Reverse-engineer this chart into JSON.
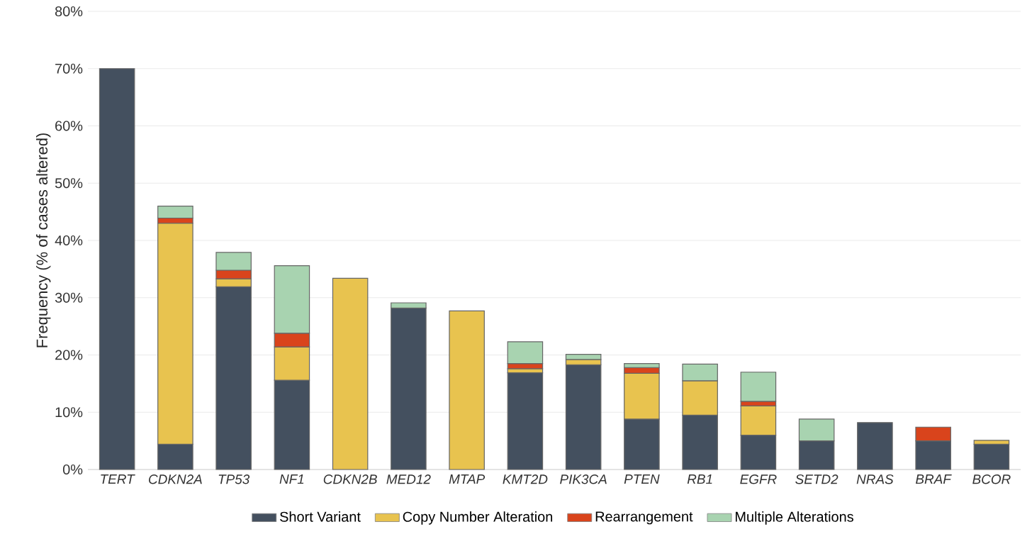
{
  "chart_data": {
    "type": "bar",
    "stacked": true,
    "ylabel": "Frequency (% of cases altered)",
    "categories": [
      "TERT",
      "CDKN2A",
      "TP53",
      "NF1",
      "CDKN2B",
      "MED12",
      "MTAP",
      "KMT2D",
      "PIK3CA",
      "PTEN",
      "RB1",
      "EGFR",
      "SETD2",
      "NRAS",
      "BRAF",
      "BCOR"
    ],
    "series": [
      {
        "name": "Short Variant",
        "color": "#44505f",
        "values": [
          70,
          4.4,
          31.9,
          15.6,
          null,
          28.2,
          null,
          16.9,
          18.3,
          8.8,
          9.5,
          6.0,
          5.0,
          8.2,
          5.0,
          4.4
        ]
      },
      {
        "name": "Copy Number Alteration",
        "color": "#e8c34f",
        "values": [
          null,
          38.6,
          1.4,
          5.8,
          33.4,
          null,
          27.7,
          0.7,
          0.9,
          8.0,
          6.0,
          5.1,
          null,
          null,
          null,
          0.7
        ]
      },
      {
        "name": "Rearrangement",
        "color": "#d9441c",
        "values": [
          null,
          0.9,
          1.5,
          2.4,
          null,
          null,
          null,
          0.9,
          null,
          1.0,
          null,
          0.8,
          null,
          null,
          2.4,
          null
        ]
      },
      {
        "name": "Multiple Alterations",
        "color": "#a8d3b0",
        "values": [
          null,
          2.1,
          3.1,
          11.8,
          null,
          0.9,
          null,
          3.8,
          0.9,
          0.7,
          2.9,
          5.1,
          3.8,
          null,
          null,
          null
        ]
      }
    ],
    "ylim": [
      0,
      80
    ],
    "yticks": [
      {
        "value": 0,
        "label": "0%"
      },
      {
        "value": 10,
        "label": "10%"
      },
      {
        "value": 20,
        "label": "20%"
      },
      {
        "value": 30,
        "label": "30%"
      },
      {
        "value": 40,
        "label": "40%"
      },
      {
        "value": 50,
        "label": "50%"
      },
      {
        "value": 60,
        "label": "60%"
      },
      {
        "value": 70,
        "label": "70%"
      },
      {
        "value": 80,
        "label": "80%"
      }
    ],
    "grid": "y",
    "legend": "bottom"
  }
}
